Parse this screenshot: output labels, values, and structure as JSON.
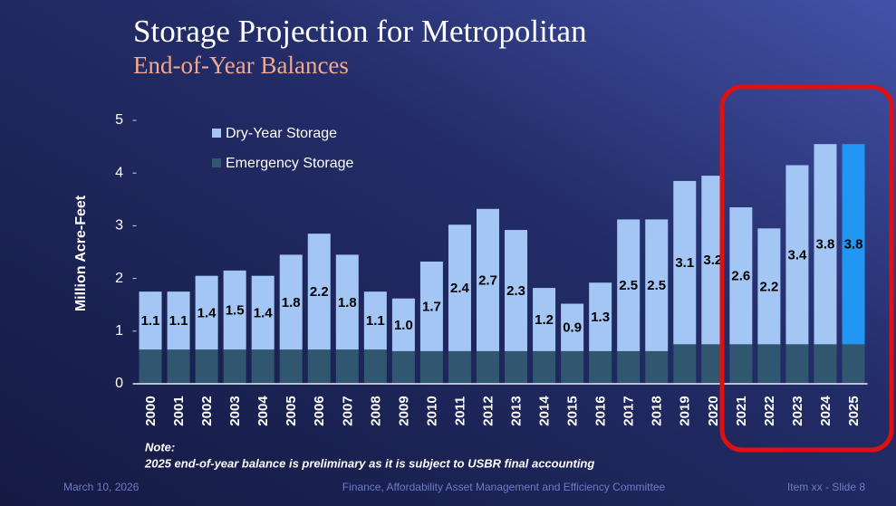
{
  "chart_data": {
    "type": "stacked_bar",
    "title": "Storage Projection for Metropolitan",
    "subtitle": "End-of-Year Balances",
    "y_label": "Million Acre-Feet",
    "categories": [
      "2000",
      "2001",
      "2002",
      "2003",
      "2004",
      "2005",
      "2006",
      "2007",
      "2008",
      "2009",
      "2010",
      "2011",
      "2012",
      "2013",
      "2014",
      "2015",
      "2016",
      "2017",
      "2018",
      "2019",
      "2020",
      "2021",
      "2022",
      "2023",
      "2024",
      "2025"
    ],
    "series": [
      {
        "name": "Dry-Year Storage",
        "color": "#a3c6f4",
        "colors": [
          "#a3c6f4",
          "#a3c6f4",
          "#a3c6f4",
          "#a3c6f4",
          "#a3c6f4",
          "#a3c6f4",
          "#a3c6f4",
          "#a3c6f4",
          "#a3c6f4",
          "#a3c6f4",
          "#a3c6f4",
          "#a3c6f4",
          "#a3c6f4",
          "#a3c6f4",
          "#a3c6f4",
          "#a3c6f4",
          "#a3c6f4",
          "#a3c6f4",
          "#a3c6f4",
          "#a3c6f4",
          "#a3c6f4",
          "#a3c6f4",
          "#a3c6f4",
          "#a3c6f4",
          "#a3c6f4",
          "#2196f3"
        ],
        "values": [
          1.1,
          1.1,
          1.4,
          1.5,
          1.4,
          1.8,
          2.2,
          1.8,
          1.1,
          1.0,
          1.7,
          2.4,
          2.7,
          2.3,
          1.2,
          0.9,
          1.3,
          2.5,
          2.5,
          3.1,
          3.2,
          2.6,
          2.2,
          3.4,
          3.8,
          3.8
        ],
        "value_labels": [
          "1.1",
          "1.1",
          "1.4",
          "1.5",
          "1.4",
          "1.8",
          "2.2",
          "1.8",
          "1.1",
          "1.0",
          "1.7",
          "2.4",
          "2.7",
          "2.3",
          "1.2",
          "0.9",
          "1.3",
          "2.5",
          "2.5",
          "3.1",
          "3.2",
          "2.6",
          "2.2",
          "3.4",
          "3.8",
          "3.8"
        ]
      },
      {
        "name": "Emergency Storage",
        "color": "#31566f",
        "values": [
          0.65,
          0.65,
          0.65,
          0.65,
          0.65,
          0.65,
          0.65,
          0.65,
          0.65,
          0.62,
          0.62,
          0.62,
          0.62,
          0.62,
          0.62,
          0.62,
          0.62,
          0.62,
          0.62,
          0.75,
          0.75,
          0.75,
          0.75,
          0.75,
          0.75,
          0.75
        ]
      }
    ],
    "ylim": [
      0,
      5
    ],
    "yticks": [
      0,
      1,
      2,
      3,
      4,
      5
    ],
    "grid": false,
    "legend": "top-left",
    "note_title": "Note:",
    "note": "2025 end-of-year balance is preliminary as it is subject to USBR final accounting"
  },
  "footer": {
    "date": "March 10, 2026",
    "committee": "Finance, Affordability Asset Management and Efficiency Committee",
    "slide": "Item xx - Slide 8"
  }
}
